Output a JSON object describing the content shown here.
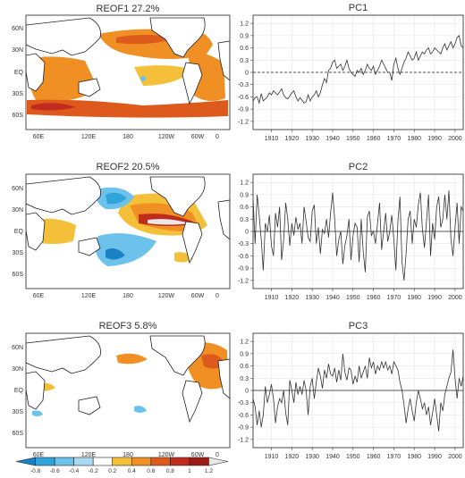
{
  "chart_data": [
    {
      "type": "map",
      "title": "REOF1 27.2%",
      "lat_ticks": [
        "60N",
        "30N",
        "EQ",
        "30S",
        "60S"
      ],
      "lon_ticks": [
        "60E",
        "120E",
        "180",
        "120W",
        "60W",
        "0"
      ],
      "field_description": "warm-season SST loading positive over most oceans"
    },
    {
      "type": "line",
      "title": "PC1",
      "x_ticks": [
        "1910",
        "1920",
        "1930",
        "1940",
        "1950",
        "1960",
        "1970",
        "1980",
        "1990",
        "2000"
      ],
      "y_ticks": [
        "1.2",
        "0.9",
        "0.6",
        "0.3",
        "0",
        "-0.3",
        "-0.6",
        "-0.9",
        "-1.2"
      ],
      "ylim": [
        -1.4,
        1.4
      ],
      "xlim": [
        1901,
        2004
      ],
      "zero_line": "dashed",
      "series": [
        {
          "x_start": 1901,
          "values": [
            -0.7,
            -0.62,
            -0.6,
            -0.75,
            -0.52,
            -0.7,
            -0.65,
            -0.6,
            -0.5,
            -0.55,
            -0.45,
            -0.5,
            -0.55,
            -0.48,
            -0.4,
            -0.55,
            -0.62,
            -0.65,
            -0.58,
            -0.5,
            -0.45,
            -0.6,
            -0.7,
            -0.62,
            -0.68,
            -0.75,
            -0.72,
            -0.55,
            -0.7,
            -0.6,
            -0.55,
            -0.45,
            -0.6,
            -0.5,
            -0.3,
            -0.15,
            -0.25,
            0.05,
            0.1,
            0.25,
            0.3,
            0.1,
            0.15,
            0.2,
            0.05,
            0.15,
            0.3,
            0.1,
            0.0,
            -0.05,
            -0.1,
            0.05,
            0.0,
            0.1,
            -0.05,
            0.05,
            0.2,
            0.1,
            0.05,
            0.15,
            -0.05,
            0.05,
            0.15,
            0.3,
            0.2,
            0.1,
            0.0,
            0.0,
            -0.2,
            0.2,
            0.35,
            0.1,
            -0.05,
            0.1,
            0.25,
            0.35,
            0.5,
            0.4,
            0.3,
            0.35,
            0.5,
            0.3,
            0.4,
            0.5,
            0.45,
            0.55,
            0.6,
            0.45,
            0.5,
            0.6,
            0.55,
            0.5,
            0.45,
            0.6,
            0.7,
            0.55,
            0.65,
            0.75,
            0.6,
            0.7,
            0.85,
            0.9,
            0.65,
            0.6
          ]
        }
      ]
    },
    {
      "type": "map",
      "title": "REOF2 20.5%",
      "lat_ticks": [
        "60N",
        "30N",
        "EQ",
        "30S",
        "60S"
      ],
      "lon_ticks": [
        "60E",
        "120E",
        "180",
        "120W",
        "60W",
        "0"
      ],
      "field_description": "ENSO-like tropical Pacific pattern"
    },
    {
      "type": "line",
      "title": "PC2",
      "x_ticks": [
        "1910",
        "1920",
        "1930",
        "1940",
        "1950",
        "1960",
        "1970",
        "1980",
        "1990",
        "2000"
      ],
      "y_ticks": [
        "1.2",
        "0.9",
        "0.6",
        "0.3",
        "0",
        "-0.3",
        "-0.6",
        "-0.9",
        "-1.2"
      ],
      "ylim": [
        -1.4,
        1.4
      ],
      "xlim": [
        1901,
        2004
      ],
      "zero_line": "solid",
      "series": [
        {
          "x_start": 1901,
          "values": [
            0.8,
            -0.3,
            0.9,
            0.4,
            -0.2,
            -0.95,
            0.2,
            0.0,
            0.4,
            -0.35,
            -0.6,
            0.45,
            0.1,
            0.6,
            -0.7,
            -0.2,
            0.7,
            0.3,
            -0.35,
            0.2,
            -0.1,
            0.35,
            0.05,
            0.2,
            -0.3,
            0.6,
            0.25,
            -0.15,
            -0.25,
            0.5,
            0.65,
            -0.3,
            0.1,
            -0.55,
            0.05,
            -0.05,
            0.3,
            -0.15,
            0.45,
            0.95,
            0.3,
            -0.6,
            -0.2,
            0.0,
            -0.8,
            -0.35,
            -0.1,
            0.3,
            -0.7,
            -0.1,
            0.2,
            0.1,
            -0.75,
            0.3,
            -0.5,
            -1.0,
            0.35,
            0.5,
            -0.1,
            0.0,
            -0.3,
            0.2,
            0.7,
            -0.45,
            0.0,
            0.45,
            -0.25,
            0.0,
            0.4,
            -0.2,
            -0.95,
            0.25,
            0.85,
            -0.75,
            -1.2,
            -0.55,
            0.3,
            0.5,
            -0.3,
            0.3,
            0.1,
            0.65,
            0.95,
            0.05,
            -0.4,
            0.25,
            0.9,
            -0.6,
            0.2,
            -0.2,
            0.6,
            0.85,
            0.1,
            0.3,
            0.9,
            0.3,
            1.0,
            -0.2,
            -0.6,
            0.1,
            0.7,
            -0.3,
            0.6,
            0.5
          ]
        }
      ]
    },
    {
      "type": "map",
      "title": "REOF3 5.8%",
      "lat_ticks": [
        "60N",
        "30N",
        "EQ",
        "30S",
        "60S"
      ],
      "lon_ticks": [
        "60E",
        "120E",
        "180",
        "120W",
        "60W",
        "0"
      ],
      "field_description": "North Atlantic dominated pattern"
    },
    {
      "type": "line",
      "title": "PC3",
      "x_ticks": [
        "1910",
        "1920",
        "1930",
        "1940",
        "1950",
        "1960",
        "1970",
        "1980",
        "1990",
        "2000"
      ],
      "y_ticks": [
        "1.2",
        "0.9",
        "0.6",
        "0.3",
        "0",
        "-0.3",
        "-0.6",
        "-0.9",
        "-1.2"
      ],
      "ylim": [
        -1.4,
        1.4
      ],
      "xlim": [
        1901,
        2004
      ],
      "zero_line": "solid",
      "series": [
        {
          "x_start": 1901,
          "values": [
            -0.2,
            -0.4,
            -0.85,
            -0.5,
            -0.9,
            -0.6,
            0.1,
            -0.3,
            -0.1,
            0.15,
            -0.2,
            -0.8,
            -0.4,
            -0.2,
            -0.3,
            0.0,
            -0.55,
            -0.85,
            0.25,
            0.0,
            -0.3,
            0.2,
            -0.1,
            0.1,
            -0.1,
            0.25,
            0.0,
            -0.6,
            0.1,
            0.3,
            -0.2,
            0.2,
            0.55,
            0.35,
            0.05,
            0.5,
            0.3,
            0.65,
            0.4,
            0.35,
            0.55,
            0.2,
            0.5,
            0.25,
            0.9,
            0.45,
            0.25,
            0.55,
            0.5,
            0.15,
            0.35,
            0.2,
            0.6,
            0.3,
            0.45,
            0.6,
            0.3,
            0.8,
            0.55,
            0.7,
            0.4,
            0.6,
            0.5,
            0.7,
            0.55,
            0.7,
            0.5,
            0.6,
            0.4,
            0.7,
            0.6,
            0.5,
            0.2,
            0.0,
            -0.35,
            -0.8,
            -0.45,
            -0.2,
            -0.5,
            -0.75,
            -0.3,
            0.0,
            -0.2,
            -0.45,
            -0.3,
            -0.6,
            -0.4,
            -0.85,
            -0.55,
            -0.2,
            -0.6,
            -1.0,
            -0.3,
            -0.5,
            -0.1,
            0.1,
            0.3,
            0.45,
            1.0,
            0.3,
            -0.2,
            0.3,
            0.1,
            0.35
          ]
        }
      ]
    }
  ],
  "colorbar": {
    "labels": [
      "-0.8",
      "-0.6",
      "-0.4",
      "-0.2",
      "0.2",
      "0.4",
      "0.6",
      "0.8",
      "1",
      "1.2"
    ],
    "colors": [
      "#1a82c4",
      "#2fa5dc",
      "#6cc2ea",
      "#a8daf2",
      "#ffffff",
      "#f4c03a",
      "#f08f23",
      "#dd5a1c",
      "#c12b1d",
      "#9b1b15",
      "#e8e8e8"
    ]
  }
}
